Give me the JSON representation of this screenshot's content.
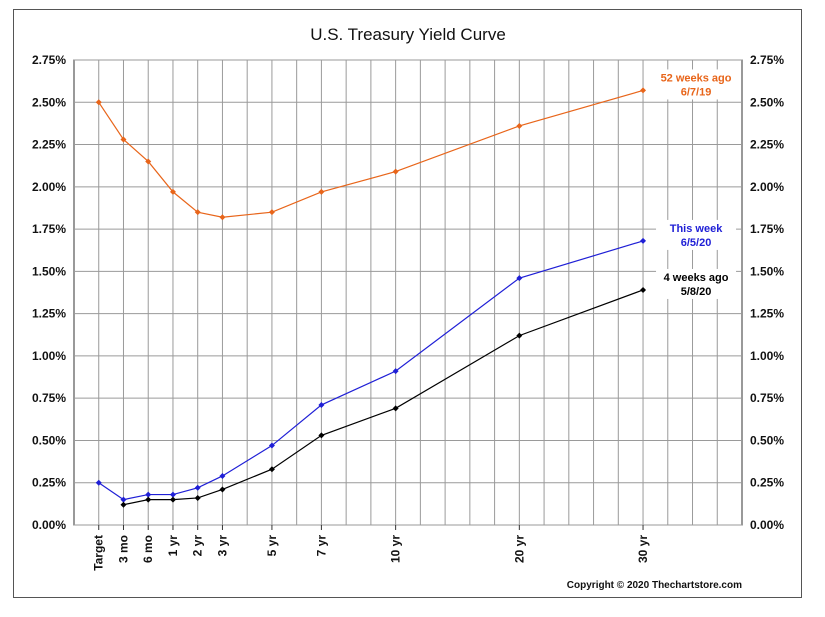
{
  "chart_data": {
    "type": "line",
    "title": "U.S. Treasury Yield Curve",
    "xlabel": "",
    "ylabel": "",
    "ylim": [
      0,
      2.75
    ],
    "y_ticks": [
      "0.00%",
      "0.25%",
      "0.50%",
      "0.75%",
      "1.00%",
      "1.25%",
      "1.50%",
      "1.75%",
      "2.00%",
      "2.25%",
      "2.50%",
      "2.75%"
    ],
    "y_tick_values": [
      0,
      0.25,
      0.5,
      0.75,
      1.0,
      1.25,
      1.5,
      1.75,
      2.0,
      2.25,
      2.5,
      2.75
    ],
    "categories": [
      "Target",
      "3 mo",
      "6 mo",
      "1 yr",
      "2 yr",
      "3 yr",
      "5 yr",
      "7 yr",
      "10 yr",
      "20 yr",
      "30 yr"
    ],
    "x": [
      0,
      1,
      2,
      3,
      4,
      5,
      7,
      9,
      12,
      17,
      22
    ],
    "x_range": [
      -1,
      26
    ],
    "grid": true,
    "series": [
      {
        "name": "52 weeks ago",
        "date": "6/7/19",
        "color": "#e8651a",
        "values": [
          2.5,
          2.28,
          2.15,
          1.97,
          1.85,
          1.82,
          1.85,
          1.97,
          2.09,
          2.36,
          2.57
        ]
      },
      {
        "name": "This week",
        "date": "6/5/20",
        "color": "#1f1fd6",
        "values": [
          0.25,
          0.15,
          0.18,
          0.18,
          0.22,
          0.29,
          0.47,
          0.71,
          0.91,
          1.46,
          1.68
        ]
      },
      {
        "name": "4 weeks ago",
        "date": "5/8/20",
        "color": "#000000",
        "values": [
          null,
          0.12,
          0.15,
          0.15,
          0.16,
          0.21,
          0.33,
          0.53,
          0.69,
          1.12,
          1.39
        ]
      }
    ],
    "annotations": [
      {
        "series": 0,
        "line1": "52 weeks ago",
        "line2": "6/7/19"
      },
      {
        "series": 1,
        "line1": "This week",
        "line2": "6/5/20"
      },
      {
        "series": 2,
        "line1": "4 weeks ago",
        "line2": "5/8/20"
      }
    ],
    "copyright": "Copyright © 2020 Thechartstore.com"
  }
}
